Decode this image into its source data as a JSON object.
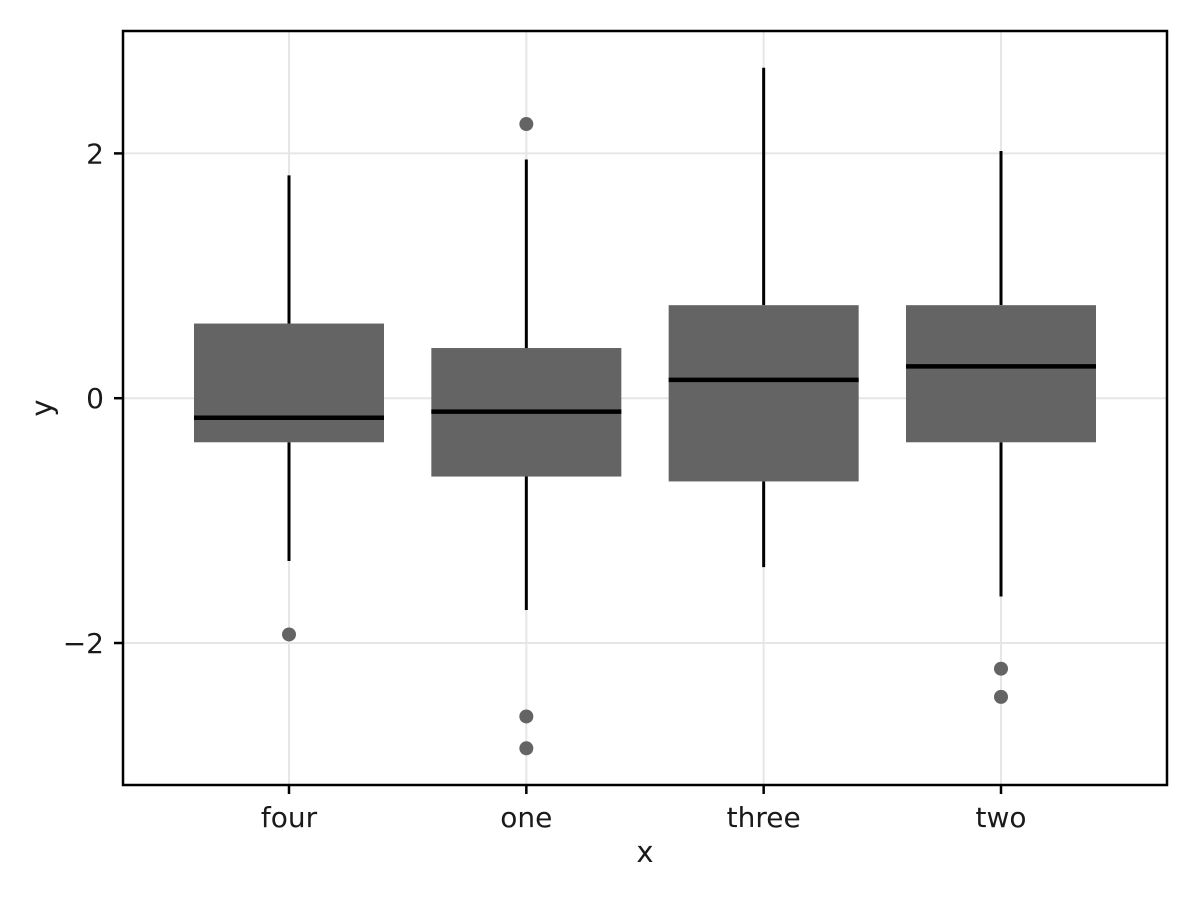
{
  "chart_data": {
    "type": "boxplot",
    "title": "",
    "xlabel": "x",
    "ylabel": "y",
    "categories": [
      "four",
      "one",
      "three",
      "two"
    ],
    "y_ticks": [
      2,
      0,
      -2
    ],
    "ylim": [
      -3.16,
      3.0
    ],
    "grid": true,
    "legend": "none",
    "colors": {
      "box_fill": "#646464",
      "box_line": "#000000",
      "median_line": "#000000",
      "whisker_line": "#000000",
      "outlier_fill": "#646464",
      "gridline": "#e6e6e6",
      "panel_border": "#000000",
      "background": "#ffffff",
      "text": "#1a1a1a"
    },
    "boxes": [
      {
        "category": "four",
        "whisker_low": -1.33,
        "q1": -0.36,
        "median": -0.16,
        "q3": 0.61,
        "whisker_high": 1.82,
        "outliers": [
          -1.93
        ]
      },
      {
        "category": "one",
        "whisker_low": -1.73,
        "q1": -0.64,
        "median": -0.11,
        "q3": 0.41,
        "whisker_high": 1.95,
        "outliers": [
          2.24,
          -2.6,
          -2.86
        ]
      },
      {
        "category": "three",
        "whisker_low": -1.38,
        "q1": -0.68,
        "median": 0.15,
        "q3": 0.76,
        "whisker_high": 2.7,
        "outliers": []
      },
      {
        "category": "two",
        "whisker_low": -1.62,
        "q1": -0.36,
        "median": 0.26,
        "q3": 0.76,
        "whisker_high": 2.02,
        "outliers": [
          -2.21,
          -2.44
        ]
      }
    ]
  }
}
